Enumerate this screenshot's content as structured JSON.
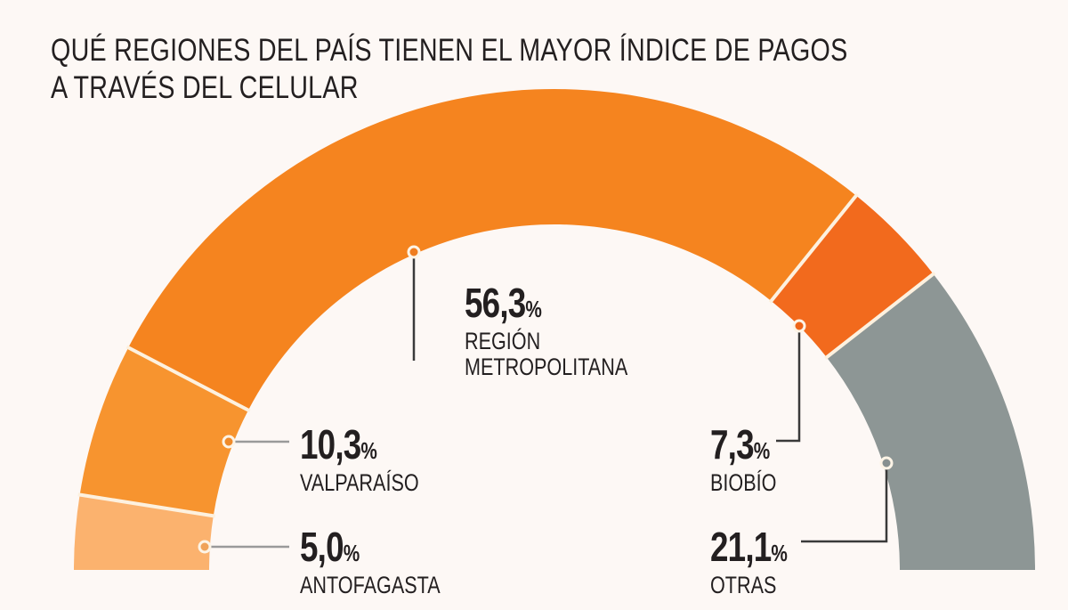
{
  "chart_data": {
    "type": "pie",
    "style": "semi-donut",
    "title": "QUÉ REGIONES DEL PAÍS TIENEN EL MAYOR ÍNDICE DE PAGOS A TRAVÉS DEL CELULAR",
    "title_lines": [
      "QUÉ REGIONES DEL PAÍS TIENEN EL MAYOR ÍNDICE DE PAGOS",
      "A TRAVÉS DEL CELULAR"
    ],
    "unit": "%",
    "slices": [
      {
        "name": "ANTOFAGASTA",
        "value": 5.0,
        "label": "5,0",
        "color": "#fbb26e"
      },
      {
        "name": "VALPARAÍSO",
        "value": 10.3,
        "label": "10,3",
        "color": "#f7942f"
      },
      {
        "name": "REGIÓN METROPOLITANA",
        "name_lines": [
          "REGIÓN",
          "METROPOLITANA"
        ],
        "value": 56.3,
        "label": "56,3",
        "color": "#f5841f"
      },
      {
        "name": "BIOBÍO",
        "value": 7.3,
        "label": "7,3",
        "color": "#f26a1d"
      },
      {
        "name": "OTRAS",
        "value": 21.1,
        "label": "21,1",
        "color": "#8d9695"
      }
    ],
    "legend": "none"
  }
}
